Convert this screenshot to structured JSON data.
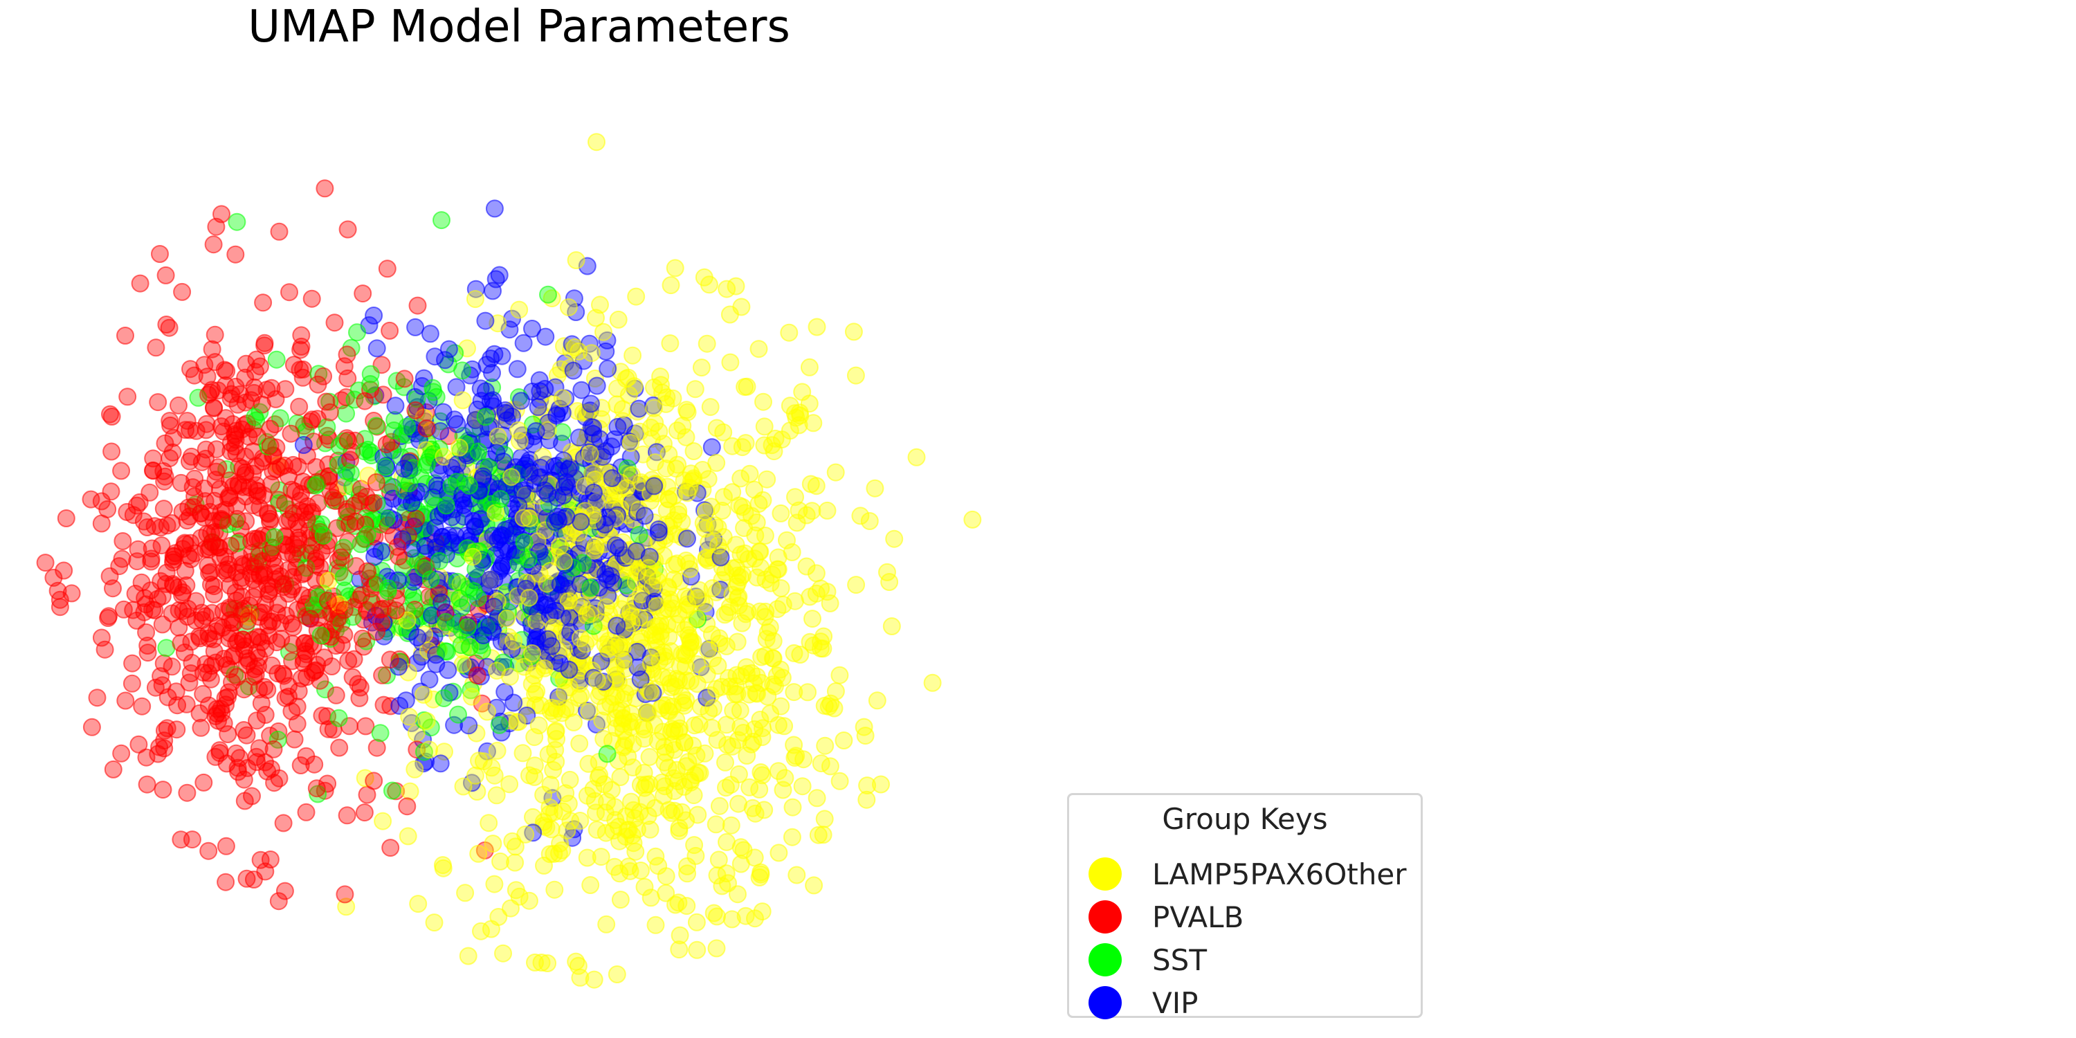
{
  "chart_data": {
    "type": "scatter",
    "title": "UMAP Model Parameters",
    "xlabel": "",
    "ylabel": "",
    "axes_visible": false,
    "grid": false,
    "legend": {
      "title": "Group Keys",
      "placement": "bottom-right"
    },
    "series": [
      {
        "name": "LAMP5PAX6Other",
        "color": "#ffff00",
        "alpha": 0.4,
        "approx_center": [
          0.62,
          0.4
        ],
        "approx_spread": [
          0.18,
          0.28
        ],
        "approx_count": 1100
      },
      {
        "name": "PVALB",
        "color": "#ff0000",
        "alpha": 0.4,
        "approx_center": [
          0.22,
          0.48
        ],
        "approx_spread": [
          0.14,
          0.24
        ],
        "approx_count": 800
      },
      {
        "name": "SST",
        "color": "#00ff00",
        "alpha": 0.4,
        "approx_center": [
          0.38,
          0.52
        ],
        "approx_spread": [
          0.15,
          0.16
        ],
        "approx_count": 350
      },
      {
        "name": "VIP",
        "color": "#0000ff",
        "alpha": 0.4,
        "approx_center": [
          0.5,
          0.52
        ],
        "approx_spread": [
          0.13,
          0.18
        ],
        "approx_count": 650
      }
    ],
    "xlim": [
      0,
      1
    ],
    "ylim": [
      0,
      1
    ]
  }
}
